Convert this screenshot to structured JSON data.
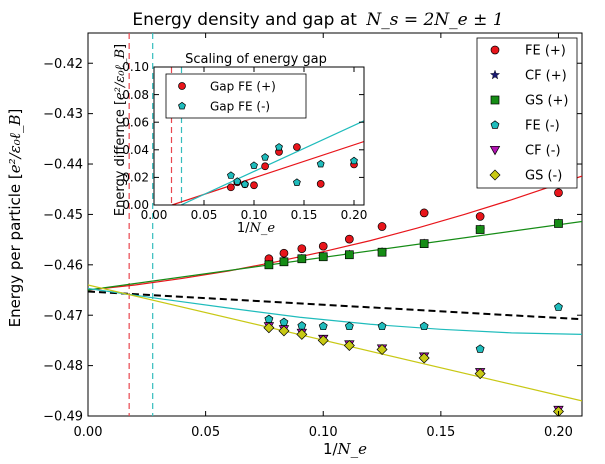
{
  "chart_data": [
    {
      "type": "scatter",
      "title": "Energy density and gap at",
      "title_math": "N_s = 2N_e ± 1",
      "xlabel": "1/",
      "xlabel_math": "N_e",
      "ylabel": "Energy per particle [",
      "ylabel_math": "e²/ε₀ℓ_B",
      "ylabel_close": "]",
      "xlim": [
        0.0,
        0.21
      ],
      "ylim": [
        -0.49,
        -0.414
      ],
      "xticks": [
        0.0,
        0.05,
        0.1,
        0.15,
        0.2
      ],
      "xtick_labels": [
        "0.00",
        "0.05",
        "0.10",
        "0.15",
        "0.20"
      ],
      "yticks": [
        -0.49,
        -0.48,
        -0.47,
        -0.46,
        -0.45,
        -0.44,
        -0.43,
        -0.42
      ],
      "ytick_labels": [
        "−0.49",
        "−0.48",
        "−0.47",
        "−0.46",
        "−0.45",
        "−0.44",
        "−0.43",
        "−0.42"
      ],
      "legend_position": "top-right",
      "vlines": [
        {
          "x": 0.0175,
          "color": "#e8474f"
        },
        {
          "x": 0.0275,
          "color": "#35bdbd"
        }
      ],
      "series": [
        {
          "name": "FE (+)",
          "marker": "circle",
          "color": "#e8151b",
          "x": [
            0.0769,
            0.0833,
            0.0909,
            0.1,
            0.1111,
            0.125,
            0.1429,
            0.1667,
            0.2
          ],
          "y": [
            -0.4588,
            -0.4577,
            -0.4568,
            -0.4563,
            -0.4549,
            -0.4524,
            -0.4497,
            -0.4504,
            -0.4457
          ]
        },
        {
          "name": "CF (+)",
          "marker": "star",
          "color": "#1a1a70",
          "x": [
            0.0769,
            0.0833,
            0.0909,
            0.1,
            0.1111,
            0.125,
            0.1429,
            0.1667,
            0.2
          ],
          "y": [
            -0.46,
            -0.4594,
            -0.4588,
            -0.4584,
            -0.458,
            -0.4575,
            -0.4558,
            -0.453,
            -0.4518
          ]
        },
        {
          "name": "GS (+)",
          "marker": "square",
          "color": "#158c15",
          "x": [
            0.0769,
            0.0833,
            0.0909,
            0.1,
            0.1111,
            0.125,
            0.1429,
            0.1667,
            0.2
          ],
          "y": [
            -0.46,
            -0.4594,
            -0.4588,
            -0.4584,
            -0.458,
            -0.4575,
            -0.4558,
            -0.453,
            -0.4518
          ]
        },
        {
          "name": "FE (-)",
          "marker": "pentagon",
          "color": "#1fbcbc",
          "x": [
            0.0769,
            0.0833,
            0.0909,
            0.1,
            0.1111,
            0.125,
            0.1429,
            0.1667,
            0.2
          ],
          "y": [
            -0.4708,
            -0.4714,
            -0.4721,
            -0.4722,
            -0.4722,
            -0.4722,
            -0.4722,
            -0.4767,
            -0.4684
          ]
        },
        {
          "name": "CF (-)",
          "marker": "triangle-down",
          "color": "#b314b3",
          "x": [
            0.0769,
            0.0833,
            0.0909,
            0.1,
            0.1111,
            0.125,
            0.1429,
            0.1667,
            0.2
          ],
          "y": [
            -0.4722,
            -0.4728,
            -0.4735,
            -0.4747,
            -0.4758,
            -0.4766,
            -0.4782,
            -0.4813,
            -0.4888
          ]
        },
        {
          "name": "GS (-)",
          "marker": "diamond",
          "color": "#c8c814",
          "x": [
            0.0769,
            0.0833,
            0.0909,
            0.1,
            0.1111,
            0.125,
            0.1429,
            0.1667,
            0.2
          ],
          "y": [
            -0.4725,
            -0.4731,
            -0.4738,
            -0.475,
            -0.476,
            -0.4768,
            -0.4785,
            -0.4816,
            -0.4891
          ]
        }
      ],
      "fit_lines": [
        {
          "color": "#e8151b",
          "style": "solid",
          "x": [
            0,
            0.02,
            0.04,
            0.06,
            0.08,
            0.1,
            0.12,
            0.14,
            0.16,
            0.18,
            0.21
          ],
          "y": [
            -0.465,
            -0.464,
            -0.4627,
            -0.4612,
            -0.4594,
            -0.4574,
            -0.4552,
            -0.4527,
            -0.45,
            -0.4471,
            -0.4424
          ]
        },
        {
          "color": "#158c15",
          "style": "solid",
          "x": [
            0,
            0.21
          ],
          "y": [
            -0.465,
            -0.4514
          ]
        },
        {
          "color": "#000000",
          "style": "dashed",
          "x": [
            0,
            0.21
          ],
          "y": [
            -0.4653,
            -0.4708
          ]
        },
        {
          "color": "#1fbcbc",
          "style": "solid",
          "x": [
            0,
            0.03,
            0.06,
            0.09,
            0.12,
            0.15,
            0.18,
            0.21
          ],
          "y": [
            -0.4647,
            -0.4667,
            -0.4686,
            -0.4704,
            -0.4718,
            -0.4728,
            -0.4735,
            -0.4738
          ]
        },
        {
          "color": "#c8c814",
          "style": "solid",
          "x": [
            0,
            0.21
          ],
          "y": [
            -0.464,
            -0.487
          ]
        }
      ]
    },
    {
      "type": "scatter",
      "title": "Scaling of energy gap",
      "xlabel": "1/",
      "xlabel_math": "N_e",
      "ylabel": "Energy differnce [",
      "ylabel_math": "e²/ε₀ℓ_B",
      "ylabel_close": "]",
      "xlim": [
        0.0,
        0.21
      ],
      "ylim": [
        0.0,
        0.1
      ],
      "xticks": [
        0.0,
        0.05,
        0.1,
        0.15,
        0.2
      ],
      "xtick_labels": [
        "0.00",
        "0.05",
        "0.10",
        "0.15",
        "0.20"
      ],
      "yticks": [
        0.0,
        0.02,
        0.04,
        0.06,
        0.08,
        0.1
      ],
      "ytick_labels": [
        "0.00",
        "0.02",
        "0.04",
        "0.06",
        "0.08",
        "0.10"
      ],
      "legend_position": "top-right",
      "vlines": [
        {
          "x": 0.0175,
          "color": "#e8474f"
        },
        {
          "x": 0.0275,
          "color": "#35bdbd"
        }
      ],
      "series": [
        {
          "name": "Gap FE (+)",
          "marker": "circle",
          "color": "#e8151b",
          "x": [
            0.0769,
            0.0833,
            0.0909,
            0.1,
            0.1111,
            0.125,
            0.1429,
            0.1667,
            0.2
          ],
          "y": [
            0.0128,
            0.0165,
            0.015,
            0.0143,
            0.0281,
            0.0385,
            0.042,
            0.0153,
            0.0294
          ]
        },
        {
          "name": "Gap FE (-)",
          "marker": "pentagon",
          "color": "#1fbcbc",
          "x": [
            0.0769,
            0.0833,
            0.0909,
            0.1,
            0.1111,
            0.125,
            0.1429,
            0.1667,
            0.2
          ],
          "y": [
            0.0214,
            0.0171,
            0.015,
            0.0286,
            0.0346,
            0.0419,
            0.0163,
            0.0297,
            0.032
          ]
        }
      ],
      "fit_lines": [
        {
          "color": "#e8151b",
          "style": "solid",
          "x": [
            0.018,
            0.21
          ],
          "y": [
            0.0,
            0.046
          ]
        },
        {
          "color": "#1fbcbc",
          "style": "solid",
          "x": [
            0.027,
            0.21
          ],
          "y": [
            0.0,
            0.061
          ]
        }
      ]
    }
  ]
}
